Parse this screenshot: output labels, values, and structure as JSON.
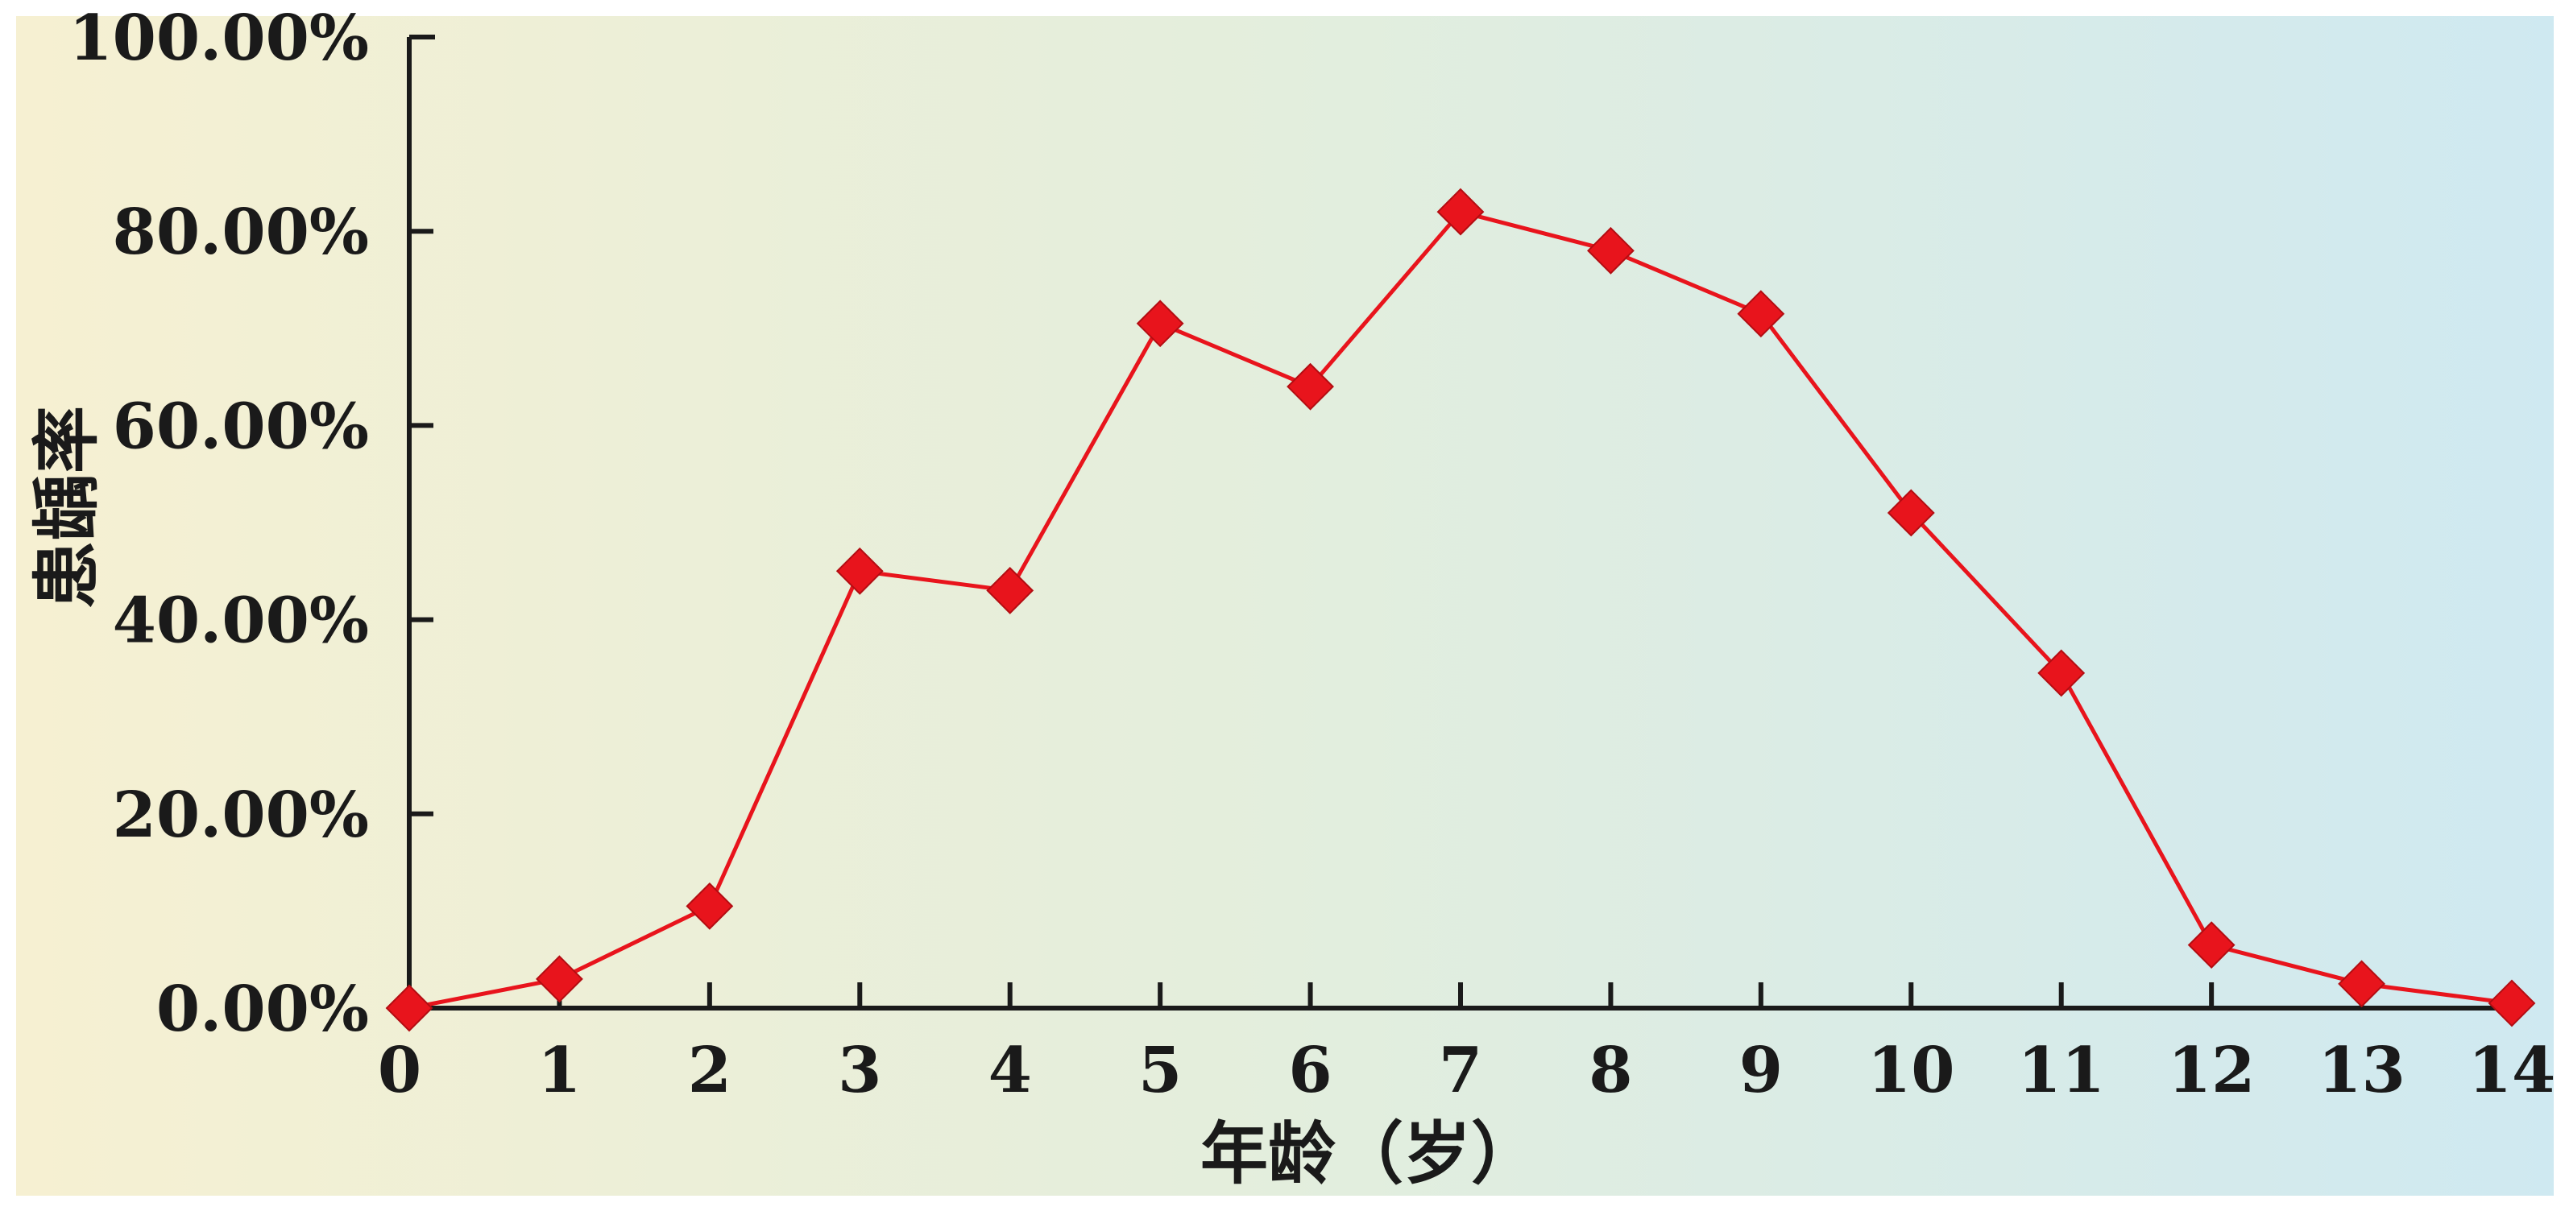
{
  "chart_data": {
    "type": "line",
    "title": "",
    "xlabel": "年龄（岁）",
    "ylabel": "患龋率",
    "x": [
      0,
      1,
      2,
      3,
      4,
      5,
      6,
      7,
      8,
      9,
      10,
      11,
      12,
      13,
      14
    ],
    "x_ticks": [
      "0",
      "1",
      "2",
      "3",
      "4",
      "5",
      "6",
      "7",
      "8",
      "9",
      "10",
      "11",
      "12",
      "13",
      "14"
    ],
    "y_ticks": [
      "0.00%",
      "20.00%",
      "40.00%",
      "60.00%",
      "80.00%",
      "100.00%"
    ],
    "xlim": [
      0,
      14
    ],
    "ylim": [
      0,
      100
    ],
    "grid": false,
    "series": [
      {
        "name": "",
        "color": "#e8141c",
        "marker": "diamond",
        "values": [
          0,
          3,
          10.5,
          45,
          43,
          70.5,
          64,
          82,
          78,
          71.5,
          51,
          34.5,
          6.5,
          2.5,
          0.5
        ]
      }
    ]
  }
}
